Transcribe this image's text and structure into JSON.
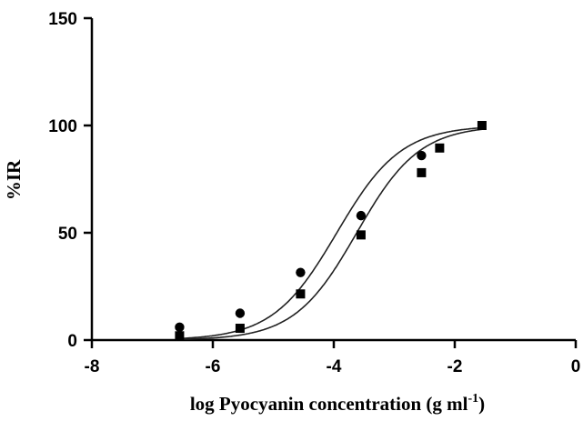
{
  "chart_data": {
    "type": "scatter",
    "xlabel": "log Pyocyanin concentration (g ml",
    "xlabel_sup": "-1",
    "xlabel_close": ")",
    "ylabel": "%IR",
    "xlim": [
      -8,
      0
    ],
    "ylim": [
      0,
      150
    ],
    "xticks": [
      -8,
      -6,
      -4,
      -2,
      0
    ],
    "yticks": [
      0,
      50,
      100,
      150
    ],
    "grid": false,
    "legend": "none",
    "series": [
      {
        "marker": "circle",
        "x": [
          -6.55,
          -5.55,
          -4.55,
          -3.55,
          -2.55
        ],
        "y": [
          6,
          12.5,
          31.5,
          58,
          86
        ]
      },
      {
        "marker": "square",
        "x": [
          -6.55,
          -5.55,
          -4.55,
          -3.55,
          -2.55,
          -2.25,
          -1.55
        ],
        "y": [
          2,
          5.5,
          21.5,
          49,
          78,
          89.5,
          100
        ]
      }
    ],
    "fit_curves": [
      {
        "bottom": 0,
        "top": 100,
        "log_ec50": -3.95,
        "hill": 0.82
      },
      {
        "bottom": 0,
        "top": 100,
        "log_ec50": -3.62,
        "hill": 0.84
      }
    ]
  }
}
